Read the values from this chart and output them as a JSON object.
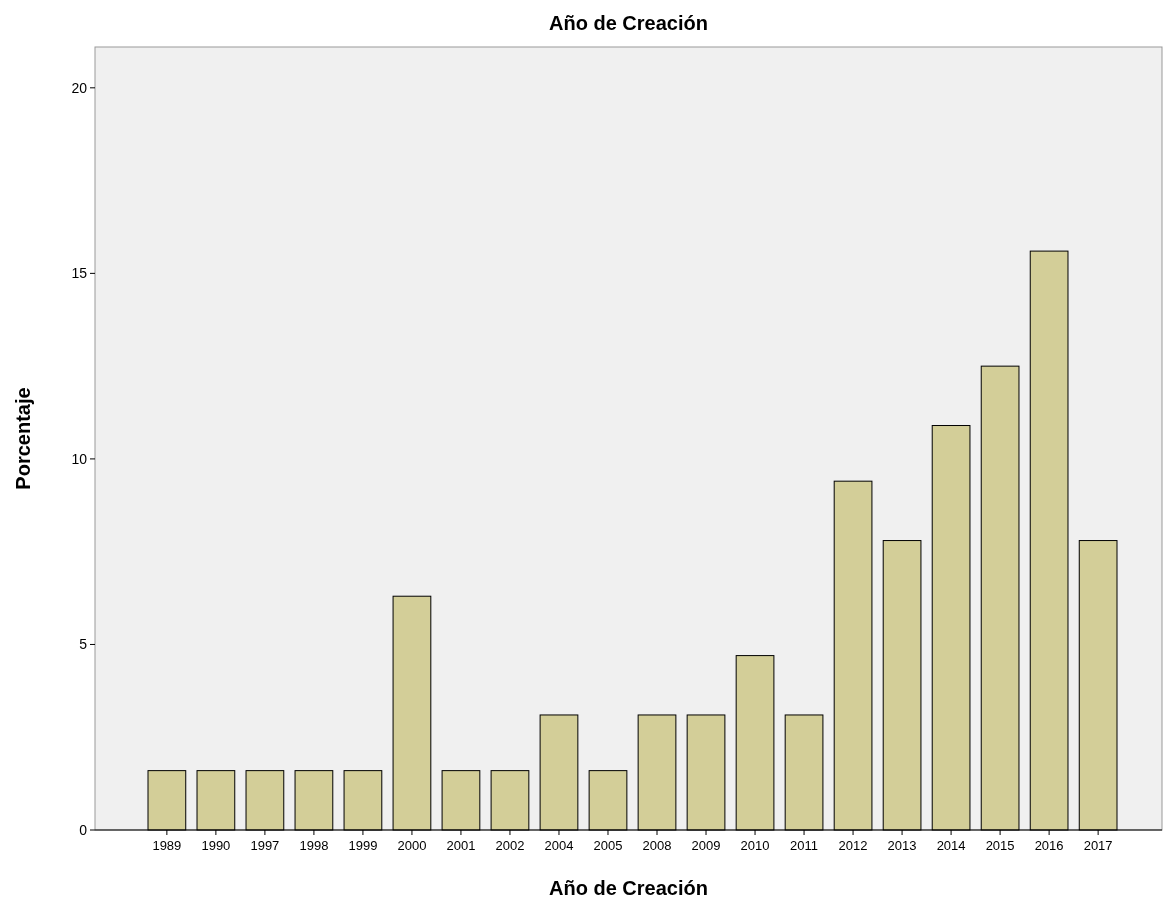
{
  "chart_data": {
    "type": "bar",
    "title": "Año de Creación",
    "xlabel": "Año de Creación",
    "ylabel": "Porcentaje",
    "categories": [
      "1989",
      "1990",
      "1997",
      "1998",
      "1999",
      "2000",
      "2001",
      "2002",
      "2004",
      "2005",
      "2008",
      "2009",
      "2010",
      "2011",
      "2012",
      "2013",
      "2014",
      "2015",
      "2016",
      "2017"
    ],
    "values": [
      1.6,
      1.6,
      1.6,
      1.6,
      1.6,
      6.3,
      1.6,
      1.6,
      3.1,
      1.6,
      3.1,
      3.1,
      4.7,
      3.1,
      9.4,
      7.8,
      10.9,
      12.5,
      15.6,
      7.8
    ],
    "color": "#d3ce98",
    "ylim": [
      0,
      21.1
    ],
    "yticks": [
      0,
      5,
      10,
      15,
      20
    ],
    "grid": false
  }
}
